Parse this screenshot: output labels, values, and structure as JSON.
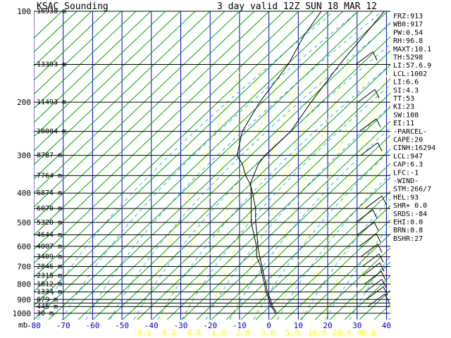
{
  "header": {
    "station": "KSAC Sounding",
    "valid": "3 day  valid 12Z SUN 18 MAR 12"
  },
  "indices": [
    "FRZ:913",
    "WB0:917",
    "PW:0.54",
    "RH:96.8",
    "MAXT:10.1",
    "TH:5298",
    "LI:57.6.9",
    "LCL:1002",
    "LI:6.6",
    "SI:4.3",
    "TT:53",
    "KI:23",
    "SW:108",
    "EI:11",
    "-PARCEL-",
    "CAPE:20",
    "CINH:16294",
    "LCL:947",
    "CAP:6.3",
    "LFC:-1",
    "-WIND-",
    "STM:266/7",
    "HEL:93",
    "SHR+ 0.0",
    "SRDS:-84",
    "EHI:0.0",
    "BRN:0.8",
    "BSHR:27"
  ],
  "colors": {
    "background": "#ffffff",
    "isotherm": "#0000cc",
    "isobar": "#000000",
    "dry_adiabat": "#00aa00",
    "moist_adiabat": "#33aaff",
    "mixing_ratio": "#ffff00",
    "profile": "#000000"
  },
  "chart_data": {
    "type": "line",
    "title": "KSAC Sounding",
    "subtitle": "3 day  valid 12Z SUN 18 MAR 12",
    "x_axis": {
      "units_label": "mb",
      "temperature_ticks": [
        -80,
        -70,
        -60,
        -50,
        -40,
        -30,
        -20,
        -10,
        0,
        10,
        20,
        30,
        40
      ],
      "temperature_tick_labels": [
        "-80",
        "-70",
        "-60",
        "-50",
        "-40",
        "-30",
        "-20",
        "-10",
        "0",
        "10",
        "20",
        "30",
        "40"
      ],
      "xlim": [
        -80,
        40
      ]
    },
    "mixing_ratio_labels": [
      "0.1",
      "0.2",
      "0.8",
      "1.0",
      "2.0",
      "3.0",
      "5.0",
      "10.0",
      "20.0",
      "40.0"
    ],
    "y_axis": {
      "scale": "log-pressure",
      "pressure_ticks": [
        100,
        200,
        300,
        400,
        500,
        600,
        700,
        800,
        900,
        1000
      ],
      "pressure_tick_labels": [
        "100",
        "200",
        "300",
        "400",
        "500",
        "600",
        "700",
        "800",
        "900",
        "1000"
      ],
      "ylim": [
        1050,
        100
      ]
    },
    "height_labels": [
      {
        "p": 100,
        "label": "16938 m"
      },
      {
        "p": 150,
        "label": "13393 m"
      },
      {
        "p": 200,
        "label": "11493 m"
      },
      {
        "p": 250,
        "label": "10004 m"
      },
      {
        "p": 300,
        "label": "8787 m"
      },
      {
        "p": 350,
        "label": "7764 m"
      },
      {
        "p": 400,
        "label": "6874 m"
      },
      {
        "p": 450,
        "label": "6070 m"
      },
      {
        "p": 500,
        "label": "5320 m"
      },
      {
        "p": 550,
        "label": "4644 m"
      },
      {
        "p": 600,
        "label": "4007 m"
      },
      {
        "p": 650,
        "label": "3409 m"
      },
      {
        "p": 700,
        "label": "2846 m"
      },
      {
        "p": 750,
        "label": "2315 m"
      },
      {
        "p": 800,
        "label": "1812 m"
      },
      {
        "p": 850,
        "label": "1334 m"
      },
      {
        "p": 900,
        "label": "879 m"
      },
      {
        "p": 950,
        "label": "445 m"
      },
      {
        "p": 1000,
        "label": "30 m"
      }
    ],
    "series": [
      {
        "kind": "temperature",
        "points": [
          [
            1000,
            0.5
          ],
          [
            975,
            -1.0
          ],
          [
            950,
            -3.0
          ],
          [
            900,
            -6.0
          ],
          [
            850,
            -9.5
          ],
          [
            800,
            -12.5
          ],
          [
            750,
            -16.0
          ],
          [
            700,
            -19.5
          ],
          [
            650,
            -23.5
          ],
          [
            600,
            -27.5
          ],
          [
            550,
            -31.5
          ],
          [
            500,
            -36.0
          ],
          [
            450,
            -40.5
          ],
          [
            400,
            -46.5
          ],
          [
            375,
            -50.0
          ],
          [
            350,
            -54.5
          ],
          [
            320,
            -59.5
          ],
          [
            300,
            -64.0
          ],
          [
            250,
            -70.0
          ],
          [
            200,
            -73.5
          ],
          [
            150,
            -76.0
          ],
          [
            120,
            -80.0
          ],
          [
            100,
            -82.0
          ]
        ]
      },
      {
        "kind": "dewpoint",
        "points": [
          [
            1000,
            0.0
          ],
          [
            975,
            -1.5
          ],
          [
            950,
            -3.5
          ],
          [
            900,
            -6.5
          ],
          [
            850,
            -10.0
          ],
          [
            800,
            -13.0
          ],
          [
            750,
            -16.5
          ],
          [
            700,
            -20.0
          ],
          [
            650,
            -24.5
          ],
          [
            600,
            -28.0
          ],
          [
            550,
            -32.5
          ],
          [
            500,
            -37.5
          ],
          [
            450,
            -42.0
          ],
          [
            400,
            -47.0
          ],
          [
            370,
            -50.5
          ],
          [
            320,
            -54.0
          ],
          [
            300,
            -54.5
          ],
          [
            250,
            -53.5
          ],
          [
            200,
            -56.0
          ],
          [
            150,
            -58.5
          ],
          [
            100,
            -60.5
          ]
        ]
      }
    ],
    "grid": true,
    "legend": "none"
  }
}
